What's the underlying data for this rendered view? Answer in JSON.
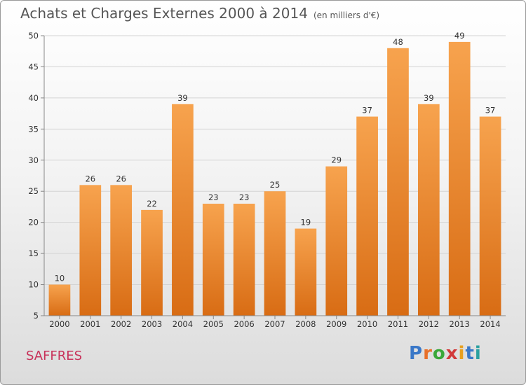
{
  "header": {
    "title": "Achats et Charges Externes 2000 à 2014",
    "subtitle": "(en milliers d'€)"
  },
  "footer": {
    "commune": "SAFFRES",
    "brand_letters": [
      "P",
      "r",
      "o",
      "x",
      "i",
      "t",
      "i"
    ],
    "brand_colors": [
      "#3a78c8",
      "#e8702a",
      "#3aa83a",
      "#d23a3a",
      "#e8a020",
      "#3a78c8",
      "#2aa0a0"
    ]
  },
  "colors": {
    "bar_top": "#f7a34e",
    "bar_bottom": "#d86c14",
    "grid": "#d4d4d4",
    "axis": "#888888"
  },
  "chart_data": {
    "type": "bar",
    "title": "Achats et Charges Externes 2000 à 2014",
    "subtitle": "(en milliers d'€)",
    "xlabel": "",
    "ylabel": "",
    "categories": [
      "2000",
      "2001",
      "2002",
      "2003",
      "2004",
      "2005",
      "2006",
      "2007",
      "2008",
      "2009",
      "2010",
      "2011",
      "2012",
      "2013",
      "2014"
    ],
    "values": [
      10,
      26,
      26,
      22,
      39,
      23,
      23,
      25,
      19,
      29,
      37,
      48,
      39,
      49,
      37
    ],
    "ylim": [
      5,
      50
    ],
    "yticks": [
      5,
      10,
      15,
      20,
      25,
      30,
      35,
      40,
      45,
      50
    ],
    "grid": true
  }
}
